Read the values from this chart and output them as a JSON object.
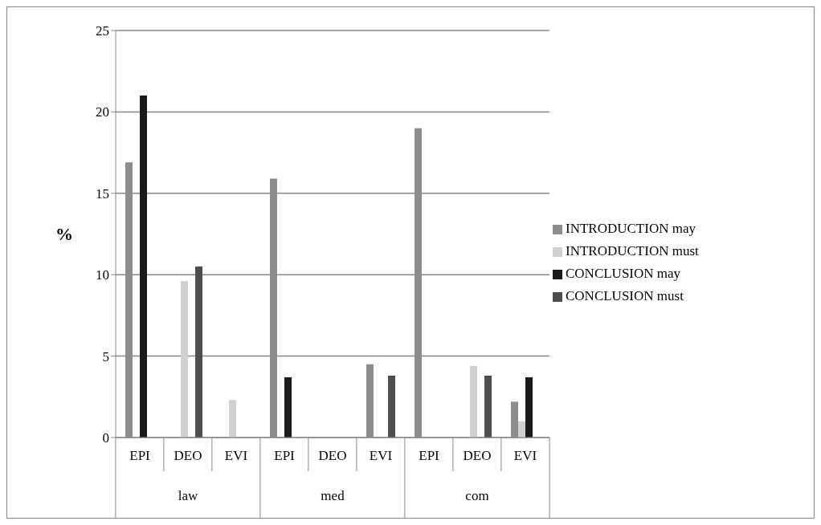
{
  "chart_data": {
    "type": "bar",
    "ylabel": "%",
    "categories": [
      "EPI",
      "DEO",
      "EVI",
      "EPI",
      "DEO",
      "EVI",
      "EPI",
      "DEO",
      "EVI"
    ],
    "series": [
      {
        "name": "INTRODUCTION may",
        "color": "#8c8c8c",
        "values": [
          16.9,
          null,
          null,
          15.9,
          null,
          4.5,
          19,
          null,
          2.2
        ]
      },
      {
        "name": "INTRODUCTION must",
        "color": "#d0d0d0",
        "values": [
          null,
          9.6,
          2.3,
          null,
          null,
          null,
          null,
          4.4,
          1.0
        ]
      },
      {
        "name": "CONCLUSION may",
        "color": "#1a1a1a",
        "values": [
          21,
          null,
          null,
          3.7,
          null,
          null,
          null,
          null,
          3.7
        ]
      },
      {
        "name": "CONCLUSION must",
        "color": "#4d4d4d",
        "values": [
          null,
          10.5,
          null,
          null,
          null,
          3.8,
          null,
          3.8,
          null
        ]
      }
    ],
    "annotations": [
      "law",
      "med",
      "com"
    ],
    "ylim": [
      0,
      25
    ],
    "yticks": [
      0,
      5,
      10,
      15,
      20,
      25
    ],
    "grid": "y",
    "legend": "right"
  }
}
